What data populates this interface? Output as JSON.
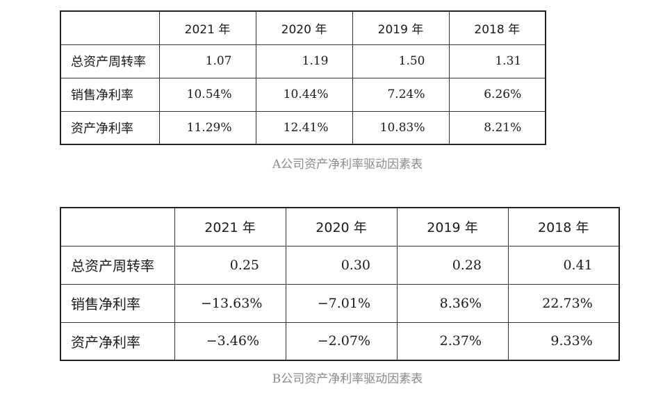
{
  "table_a": {
    "headers": [
      "",
      "2021 年",
      "2020 年",
      "2019 年",
      "2018 年"
    ],
    "rows": [
      {
        "label": "总资产周转率",
        "values": [
          "1.07",
          "1.19",
          "1.50",
          "1.31"
        ]
      },
      {
        "label": "销售净利率",
        "values": [
          "10.54%",
          "10.44%",
          "7.24%",
          "6.26%"
        ]
      },
      {
        "label": "资产净利率",
        "values": [
          "11.29%",
          "12.41%",
          "10.83%",
          "8.21%"
        ]
      }
    ],
    "caption": "A公司资产净利率驱动因素表"
  },
  "table_b": {
    "headers": [
      "",
      "2021 年",
      "2020 年",
      "2019 年",
      "2018 年"
    ],
    "rows": [
      {
        "label": "总资产周转率",
        "values": [
          "0.25",
          "0.30",
          "0.28",
          "0.41"
        ]
      },
      {
        "label": "销售净利率",
        "values": [
          "−13.63%",
          "−7.01%",
          "8.36%",
          "22.73%"
        ]
      },
      {
        "label": "资产净利率",
        "values": [
          "−3.46%",
          "−2.07%",
          "2.37%",
          "9.33%"
        ]
      }
    ],
    "caption": "B公司资产净利率驱动因素表"
  }
}
